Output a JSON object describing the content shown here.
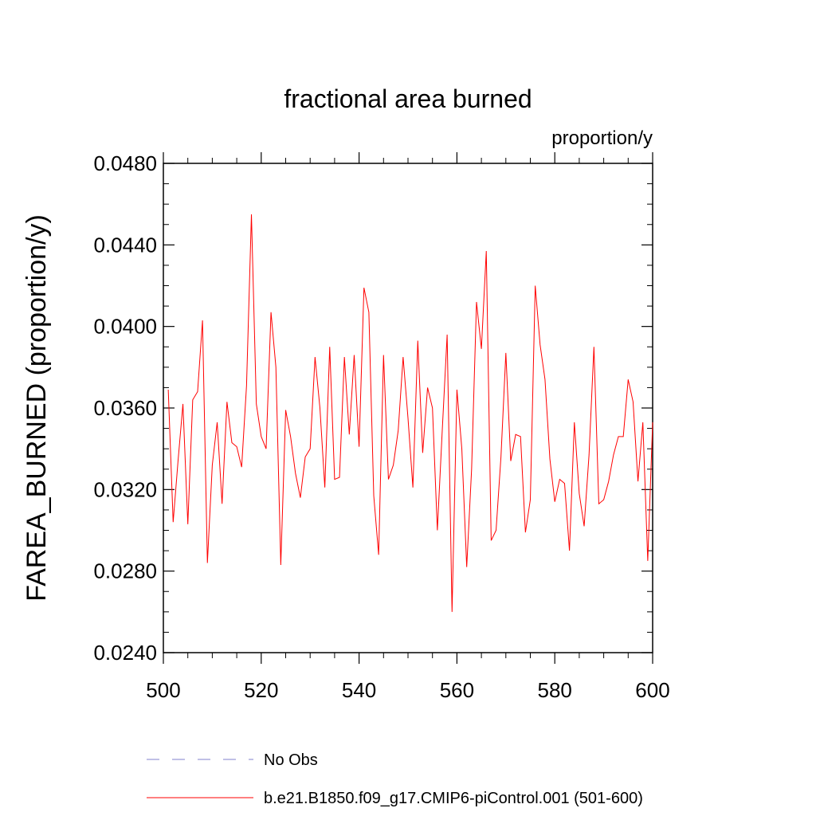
{
  "chart_data": {
    "type": "line",
    "title": "fractional area burned",
    "units_label": "proportion/y",
    "ylabel": "FAREA_BURNED  (proportion/y)",
    "xlabel": "",
    "xlim": [
      500,
      600
    ],
    "ylim": [
      0.024,
      0.048
    ],
    "x_ticks": [
      500,
      520,
      540,
      560,
      580,
      600
    ],
    "x_tick_labels": [
      "500",
      "520",
      "540",
      "560",
      "580",
      "600"
    ],
    "y_ticks": [
      0.024,
      0.028,
      0.032,
      0.036,
      0.04,
      0.044,
      0.048
    ],
    "y_tick_labels": [
      "0.0240",
      "0.0280",
      "0.0320",
      "0.0360",
      "0.0400",
      "0.0440",
      "0.0480"
    ],
    "grid": false,
    "legend_position": "bottom",
    "series": [
      {
        "name": "b.e21.B1850.f09_g17.CMIP6-piControl.001 (501-600)",
        "color": "#ff0000",
        "dash": "solid",
        "x": [
          501,
          502,
          503,
          504,
          505,
          506,
          507,
          508,
          509,
          510,
          511,
          512,
          513,
          514,
          515,
          516,
          517,
          518,
          519,
          520,
          521,
          522,
          523,
          524,
          525,
          526,
          527,
          528,
          529,
          530,
          531,
          532,
          533,
          534,
          535,
          536,
          537,
          538,
          539,
          540,
          541,
          542,
          543,
          544,
          545,
          546,
          547,
          548,
          549,
          550,
          551,
          552,
          553,
          554,
          555,
          556,
          557,
          558,
          559,
          560,
          561,
          562,
          563,
          564,
          565,
          566,
          567,
          568,
          569,
          570,
          571,
          572,
          573,
          574,
          575,
          576,
          577,
          578,
          579,
          580,
          581,
          582,
          583,
          584,
          585,
          586,
          587,
          588,
          589,
          590,
          591,
          592,
          593,
          594,
          595,
          596,
          597,
          598,
          599,
          600
        ],
        "values": [
          0.0369,
          0.0304,
          0.0334,
          0.0362,
          0.0303,
          0.0364,
          0.0368,
          0.0403,
          0.0284,
          0.0332,
          0.0353,
          0.0313,
          0.0363,
          0.0343,
          0.0341,
          0.0331,
          0.0371,
          0.0455,
          0.0362,
          0.0346,
          0.034,
          0.0407,
          0.038,
          0.0283,
          0.0359,
          0.0346,
          0.0328,
          0.0316,
          0.0336,
          0.034,
          0.0385,
          0.036,
          0.0321,
          0.039,
          0.0325,
          0.0326,
          0.0385,
          0.0347,
          0.0386,
          0.0341,
          0.0419,
          0.0407,
          0.0317,
          0.0288,
          0.0386,
          0.0325,
          0.0332,
          0.0349,
          0.0385,
          0.0355,
          0.0321,
          0.0393,
          0.0338,
          0.037,
          0.036,
          0.03,
          0.0349,
          0.0396,
          0.026,
          0.0369,
          0.034,
          0.0282,
          0.033,
          0.0412,
          0.0389,
          0.0437,
          0.0295,
          0.03,
          0.0336,
          0.0387,
          0.0334,
          0.0347,
          0.0346,
          0.0299,
          0.0315,
          0.042,
          0.0391,
          0.0374,
          0.0335,
          0.0314,
          0.0325,
          0.0323,
          0.029,
          0.0353,
          0.0318,
          0.0302,
          0.0337,
          0.039,
          0.0313,
          0.0315,
          0.0324,
          0.0337,
          0.0346,
          0.0346,
          0.0374,
          0.0363,
          0.0324,
          0.0353,
          0.0285,
          0.0353
        ]
      },
      {
        "name": "No Obs",
        "color": "#8080cc",
        "dash": "dashed",
        "x": [],
        "values": []
      }
    ]
  }
}
